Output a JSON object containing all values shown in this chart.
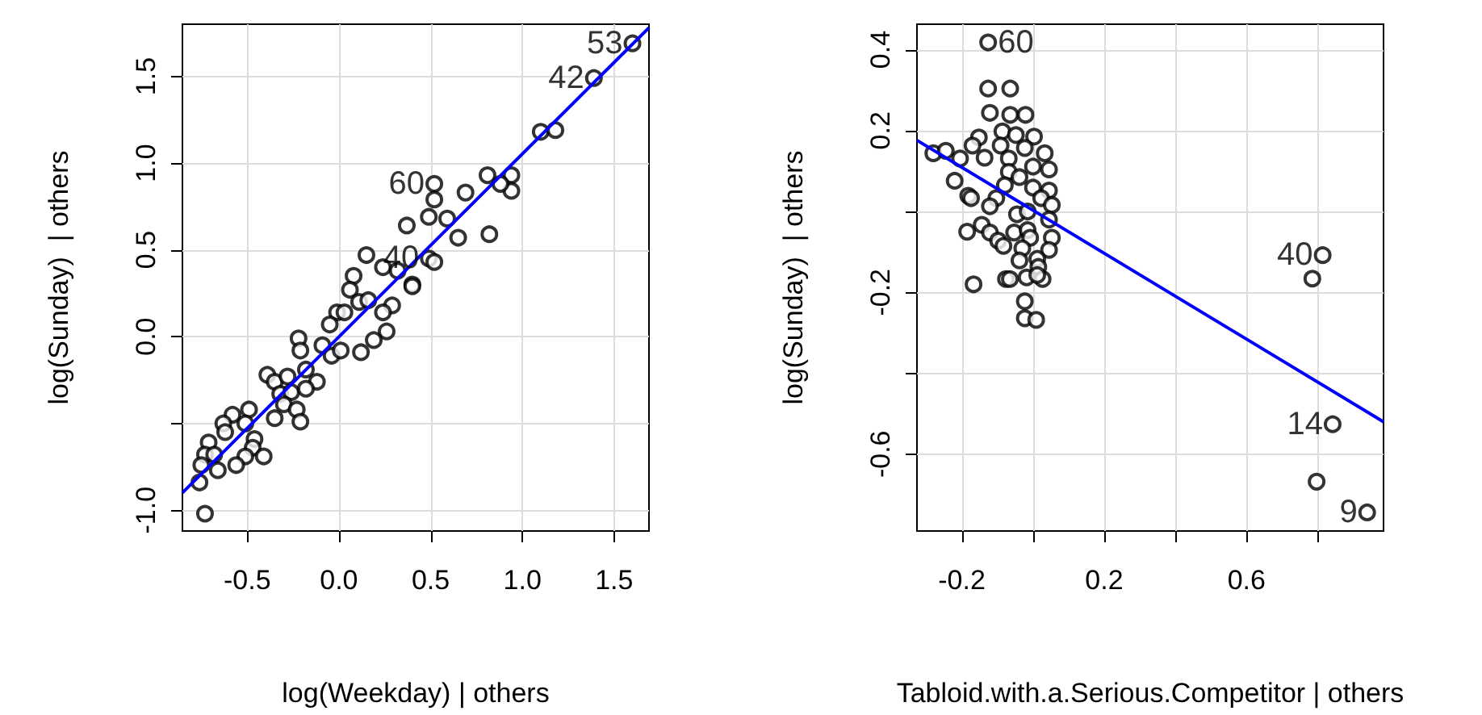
{
  "chart_data": [
    {
      "type": "scatter",
      "xlabel": "log(Weekday) | others",
      "ylabel": "log(Sunday)  | others",
      "xlim": [
        -0.853,
        1.69
      ],
      "ylim": [
        -1.12,
        1.8
      ],
      "xticks": [
        -0.5,
        {
          "value": 0,
          "label": "0.0"
        },
        0.5,
        {
          "value": 1,
          "label": "1.0"
        },
        1.5
      ],
      "yticks": [
        {
          "value": -1,
          "label": "-1.0"
        },
        {
          "value": -0.5,
          "label": null
        },
        {
          "value": 0,
          "label": "0.0"
        },
        0.5,
        {
          "value": 1,
          "label": "1.0"
        },
        1.5
      ],
      "grid": true,
      "series": [
        {
          "marker": "circle",
          "color": "#000000",
          "x": [
            1.6,
            1.39,
            1.1,
            1.18,
            0.81,
            0.94,
            0.94,
            0.88,
            0.69,
            0.52,
            0.52,
            0.49,
            0.59,
            0.65,
            0.82,
            0.37,
            0.15,
            0.49,
            0.52,
            0.24,
            0.32,
            0.4,
            0.4,
            0.08,
            0.06,
            0.11,
            0.16,
            0.29,
            0.24,
            -0.01,
            0.03,
            -0.05,
            0.26,
            0.19,
            0.12,
            -0.09,
            -0.04,
            0.01,
            -0.22,
            -0.21,
            -0.18,
            -0.12,
            -0.39,
            -0.35,
            -0.28,
            -0.32,
            -0.26,
            -0.3,
            -0.23,
            -0.21,
            -0.35,
            -0.49,
            -0.58,
            -0.51,
            -0.63,
            -0.62,
            -0.46,
            -0.47,
            -0.41,
            -0.51,
            -0.56,
            -0.71,
            -0.73,
            -0.68,
            -0.75,
            -0.66,
            -0.76,
            -0.73,
            -0.18
          ],
          "values": [
            1.69,
            1.49,
            1.18,
            1.19,
            0.93,
            0.93,
            0.84,
            0.88,
            0.83,
            0.88,
            0.79,
            0.69,
            0.68,
            0.57,
            0.59,
            0.64,
            0.47,
            0.45,
            0.43,
            0.4,
            0.38,
            0.3,
            0.29,
            0.35,
            0.27,
            0.2,
            0.21,
            0.18,
            0.14,
            0.14,
            0.14,
            0.07,
            0.03,
            -0.02,
            -0.09,
            -0.05,
            -0.11,
            -0.08,
            -0.01,
            -0.08,
            -0.19,
            -0.26,
            -0.22,
            -0.26,
            -0.23,
            -0.33,
            -0.32,
            -0.39,
            -0.42,
            -0.49,
            -0.47,
            -0.42,
            -0.45,
            -0.5,
            -0.5,
            -0.55,
            -0.59,
            -0.64,
            -0.69,
            -0.69,
            -0.74,
            -0.61,
            -0.68,
            -0.68,
            -0.74,
            -0.77,
            -0.84,
            -1.02,
            -0.3
          ]
        },
        {
          "type": "line",
          "marker": "none",
          "color": "#0000ff",
          "x": [
            -0.853,
            1.69
          ],
          "values": [
            -0.9,
            1.78
          ]
        }
      ],
      "annotations": [
        {
          "text": "53",
          "x": 1.6,
          "y": 1.69
        },
        {
          "text": "42",
          "x": 1.39,
          "y": 1.49
        },
        {
          "text": "60",
          "x": 0.52,
          "y": 0.88
        },
        {
          "text": "40",
          "x": 0.49,
          "y": 0.45
        }
      ]
    },
    {
      "type": "scatter",
      "xlabel": "Tabloid.with.a.Serious.Competitor | others",
      "ylabel": "log(Sunday)  | others",
      "xlim": [
        -0.326,
        0.985
      ],
      "ylim": [
        -0.79,
        0.463
      ],
      "xticks": [
        -0.2,
        {
          "value": 0,
          "label": null
        },
        0.2,
        {
          "value": 0.4,
          "label": null
        },
        0.6,
        {
          "value": 0.8,
          "label": null
        }
      ],
      "yticks": [
        -0.6,
        {
          "value": -0.4,
          "label": null
        },
        -0.2,
        {
          "value": 0,
          "label": null
        },
        0.2,
        0.4
      ],
      "grid": true,
      "series": [
        {
          "marker": "circle",
          "color": "#000000",
          "x": [
            -0.126,
            -0.126,
            -0.064,
            -0.121,
            -0.064,
            -0.021,
            -0.086,
            -0.048,
            0.003,
            -0.152,
            -0.17,
            -0.091,
            -0.023,
            -0.28,
            -0.245,
            -0.205,
            -0.136,
            -0.068,
            0.033,
            0.045,
            0.0,
            -0.068,
            -0.038,
            -0.22,
            0.0,
            0.045,
            -0.182,
            -0.174,
            -0.103,
            -0.079,
            -0.121,
            0.023,
            0.053,
            -0.045,
            -0.015,
            0.045,
            -0.144,
            -0.185,
            -0.121,
            -0.098,
            -0.083,
            -0.053,
            -0.015,
            -0.008,
            0.053,
            -0.03,
            0.045,
            0.012,
            -0.038,
            0.015,
            -0.167,
            -0.076,
            -0.065,
            -0.018,
            0.027,
            0.012,
            -0.023,
            -0.023,
            0.009,
            0.814,
            0.785,
            0.842,
            0.797,
            0.939
          ],
          "values": [
            0.418,
            0.304,
            0.304,
            0.244,
            0.239,
            0.239,
            0.198,
            0.189,
            0.185,
            0.183,
            0.163,
            0.163,
            0.157,
            0.144,
            0.15,
            0.131,
            0.133,
            0.131,
            0.144,
            0.104,
            0.111,
            0.098,
            0.085,
            0.076,
            0.059,
            0.052,
            0.039,
            0.033,
            0.033,
            0.065,
            0.013,
            0.033,
            0.016,
            -0.007,
            0.0,
            -0.02,
            -0.033,
            -0.05,
            -0.052,
            -0.072,
            -0.085,
            -0.052,
            -0.046,
            -0.065,
            -0.065,
            -0.091,
            -0.095,
            -0.117,
            -0.121,
            -0.137,
            -0.18,
            -0.167,
            -0.167,
            -0.163,
            -0.167,
            -0.157,
            -0.222,
            -0.264,
            -0.268,
            -0.108,
            -0.166,
            -0.526,
            -0.668,
            -0.744
          ]
        },
        {
          "type": "line",
          "marker": "none",
          "color": "#0000ff",
          "x": [
            -0.326,
            0.985
          ],
          "values": [
            0.176,
            -0.52
          ]
        }
      ],
      "annotations": [
        {
          "text": "60",
          "x": -0.126,
          "y": 0.418
        },
        {
          "text": "40",
          "x": 0.814,
          "y": -0.108
        },
        {
          "text": "14",
          "x": 0.842,
          "y": -0.526
        },
        {
          "text": "9",
          "x": 0.939,
          "y": -0.744
        }
      ]
    }
  ]
}
